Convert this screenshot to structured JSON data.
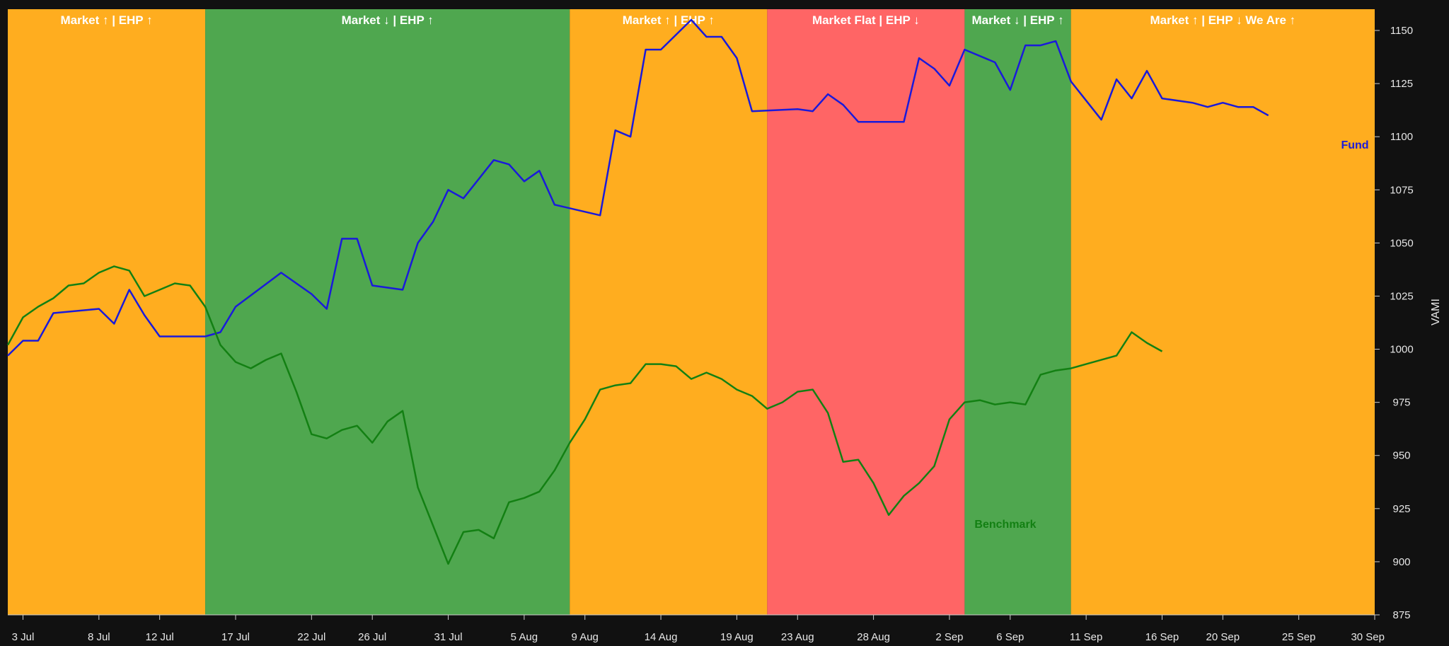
{
  "chart_data": {
    "type": "line",
    "title": "",
    "xlabel": "",
    "ylabel": "VAMI",
    "ylim": [
      875,
      1160
    ],
    "y_ticks": [
      875,
      900,
      925,
      950,
      975,
      1000,
      1025,
      1050,
      1075,
      1100,
      1125,
      1150
    ],
    "x_ticks": [
      {
        "label": "3 Jul",
        "date": "2023-07-03"
      },
      {
        "label": "8 Jul",
        "date": "2023-07-08"
      },
      {
        "label": "12 Jul",
        "date": "2023-07-12"
      },
      {
        "label": "17 Jul",
        "date": "2023-07-17"
      },
      {
        "label": "22 Jul",
        "date": "2023-07-22"
      },
      {
        "label": "26 Jul",
        "date": "2023-07-26"
      },
      {
        "label": "31 Jul",
        "date": "2023-07-31"
      },
      {
        "label": "5 Aug",
        "date": "2023-08-05"
      },
      {
        "label": "9 Aug",
        "date": "2023-08-09"
      },
      {
        "label": "14 Aug",
        "date": "2023-08-14"
      },
      {
        "label": "19 Aug",
        "date": "2023-08-19"
      },
      {
        "label": "23 Aug",
        "date": "2023-08-23"
      },
      {
        "label": "28 Aug",
        "date": "2023-08-28"
      },
      {
        "label": "2 Sep",
        "date": "2023-09-02"
      },
      {
        "label": "6 Sep",
        "date": "2023-09-06"
      },
      {
        "label": "11 Sep",
        "date": "2023-09-11"
      },
      {
        "label": "16 Sep",
        "date": "2023-09-16"
      },
      {
        "label": "20 Sep",
        "date": "2023-09-20"
      },
      {
        "label": "25 Sep",
        "date": "2023-09-25"
      },
      {
        "label": "30 Sep",
        "date": "2023-09-30"
      }
    ],
    "xlim": [
      "2023-07-02",
      "2023-09-30"
    ],
    "grid": false,
    "bands": [
      {
        "label": "Market ↑ | EHP ↑",
        "start": "2023-07-02",
        "end": "2023-07-15",
        "color": "#ffad1f"
      },
      {
        "label": "Market ↓ | EHP ↑",
        "start": "2023-07-15",
        "end": "2023-08-08",
        "color": "#4fa74f"
      },
      {
        "label": "Market ↑ | EHP ↑",
        "start": "2023-08-08",
        "end": "2023-08-21",
        "color": "#ffad1f"
      },
      {
        "label": "Market Flat | EHP ↓",
        "start": "2023-08-21",
        "end": "2023-09-03",
        "color": "#ff6565"
      },
      {
        "label": "Market ↓ | EHP ↑",
        "start": "2023-09-03",
        "end": "2023-09-10",
        "color": "#4fa74f"
      },
      {
        "label": "Market ↑ | EHP ↓ We Are ↑",
        "start": "2023-09-10",
        "end": "2023-09-30",
        "color": "#ffad1f"
      }
    ],
    "series": [
      {
        "name": "Fund",
        "color": "#1a1adb",
        "points": [
          [
            "2023-07-02",
            997
          ],
          [
            "2023-07-03",
            1004
          ],
          [
            "2023-07-04",
            1004
          ],
          [
            "2023-07-05",
            1017
          ],
          [
            "2023-07-08",
            1019
          ],
          [
            "2023-07-09",
            1012
          ],
          [
            "2023-07-10",
            1028
          ],
          [
            "2023-07-11",
            1016
          ],
          [
            "2023-07-12",
            1006
          ],
          [
            "2023-07-15",
            1006
          ],
          [
            "2023-07-16",
            1008
          ],
          [
            "2023-07-17",
            1020
          ],
          [
            "2023-07-20",
            1036
          ],
          [
            "2023-07-22",
            1026
          ],
          [
            "2023-07-23",
            1019
          ],
          [
            "2023-07-24",
            1052
          ],
          [
            "2023-07-25",
            1052
          ],
          [
            "2023-07-26",
            1030
          ],
          [
            "2023-07-28",
            1028
          ],
          [
            "2023-07-29",
            1050
          ],
          [
            "2023-07-30",
            1060
          ],
          [
            "2023-07-31",
            1075
          ],
          [
            "2023-08-01",
            1071
          ],
          [
            "2023-08-03",
            1089
          ],
          [
            "2023-08-04",
            1087
          ],
          [
            "2023-08-05",
            1079
          ],
          [
            "2023-08-06",
            1084
          ],
          [
            "2023-08-07",
            1068
          ],
          [
            "2023-08-10",
            1063
          ],
          [
            "2023-08-11",
            1103
          ],
          [
            "2023-08-12",
            1100
          ],
          [
            "2023-08-13",
            1141
          ],
          [
            "2023-08-14",
            1141
          ],
          [
            "2023-08-16",
            1155
          ],
          [
            "2023-08-17",
            1147
          ],
          [
            "2023-08-18",
            1147
          ],
          [
            "2023-08-19",
            1137
          ],
          [
            "2023-08-20",
            1112
          ],
          [
            "2023-08-23",
            1113
          ],
          [
            "2023-08-24",
            1112
          ],
          [
            "2023-08-25",
            1120
          ],
          [
            "2023-08-26",
            1115
          ],
          [
            "2023-08-27",
            1107
          ],
          [
            "2023-08-30",
            1107
          ],
          [
            "2023-08-31",
            1137
          ],
          [
            "2023-09-01",
            1132
          ],
          [
            "2023-09-02",
            1124
          ],
          [
            "2023-09-03",
            1141
          ],
          [
            "2023-09-05",
            1135
          ],
          [
            "2023-09-06",
            1122
          ],
          [
            "2023-09-07",
            1143
          ],
          [
            "2023-09-08",
            1143
          ],
          [
            "2023-09-09",
            1145
          ],
          [
            "2023-09-10",
            1126
          ],
          [
            "2023-09-12",
            1108
          ],
          [
            "2023-09-13",
            1127
          ],
          [
            "2023-09-14",
            1118
          ],
          [
            "2023-09-15",
            1131
          ],
          [
            "2023-09-16",
            1118
          ],
          [
            "2023-09-18",
            1116
          ],
          [
            "2023-09-19",
            1114
          ],
          [
            "2023-09-20",
            1116
          ],
          [
            "2023-09-21",
            1114
          ],
          [
            "2023-09-22",
            1114
          ],
          [
            "2023-09-23",
            1110
          ]
        ]
      },
      {
        "name": "Benchmark",
        "color": "#138013",
        "points": [
          [
            "2023-07-02",
            1002
          ],
          [
            "2023-07-03",
            1015
          ],
          [
            "2023-07-04",
            1020
          ],
          [
            "2023-07-05",
            1024
          ],
          [
            "2023-07-06",
            1030
          ],
          [
            "2023-07-07",
            1031
          ],
          [
            "2023-07-08",
            1036
          ],
          [
            "2023-07-09",
            1039
          ],
          [
            "2023-07-10",
            1037
          ],
          [
            "2023-07-11",
            1025
          ],
          [
            "2023-07-12",
            1028
          ],
          [
            "2023-07-13",
            1031
          ],
          [
            "2023-07-14",
            1030
          ],
          [
            "2023-07-15",
            1020
          ],
          [
            "2023-07-16",
            1002
          ],
          [
            "2023-07-17",
            994
          ],
          [
            "2023-07-18",
            991
          ],
          [
            "2023-07-19",
            995
          ],
          [
            "2023-07-20",
            998
          ],
          [
            "2023-07-21",
            980
          ],
          [
            "2023-07-22",
            960
          ],
          [
            "2023-07-23",
            958
          ],
          [
            "2023-07-24",
            962
          ],
          [
            "2023-07-25",
            964
          ],
          [
            "2023-07-26",
            956
          ],
          [
            "2023-07-27",
            966
          ],
          [
            "2023-07-28",
            971
          ],
          [
            "2023-07-29",
            935
          ],
          [
            "2023-07-30",
            917
          ],
          [
            "2023-07-31",
            899
          ],
          [
            "2023-08-01",
            914
          ],
          [
            "2023-08-02",
            915
          ],
          [
            "2023-08-03",
            911
          ],
          [
            "2023-08-04",
            928
          ],
          [
            "2023-08-05",
            930
          ],
          [
            "2023-08-06",
            933
          ],
          [
            "2023-08-07",
            943
          ],
          [
            "2023-08-08",
            956
          ],
          [
            "2023-08-09",
            967
          ],
          [
            "2023-08-10",
            981
          ],
          [
            "2023-08-11",
            983
          ],
          [
            "2023-08-12",
            984
          ],
          [
            "2023-08-13",
            993
          ],
          [
            "2023-08-14",
            993
          ],
          [
            "2023-08-15",
            992
          ],
          [
            "2023-08-16",
            986
          ],
          [
            "2023-08-17",
            989
          ],
          [
            "2023-08-18",
            986
          ],
          [
            "2023-08-19",
            981
          ],
          [
            "2023-08-20",
            978
          ],
          [
            "2023-08-21",
            972
          ],
          [
            "2023-08-22",
            975
          ],
          [
            "2023-08-23",
            980
          ],
          [
            "2023-08-24",
            981
          ],
          [
            "2023-08-25",
            970
          ],
          [
            "2023-08-26",
            947
          ],
          [
            "2023-08-27",
            948
          ],
          [
            "2023-08-28",
            937
          ],
          [
            "2023-08-29",
            922
          ],
          [
            "2023-08-30",
            931
          ],
          [
            "2023-08-31",
            937
          ],
          [
            "2023-09-01",
            945
          ],
          [
            "2023-09-02",
            967
          ],
          [
            "2023-09-03",
            975
          ],
          [
            "2023-09-04",
            976
          ],
          [
            "2023-09-05",
            974
          ],
          [
            "2023-09-06",
            975
          ],
          [
            "2023-09-07",
            974
          ],
          [
            "2023-09-08",
            988
          ],
          [
            "2023-09-09",
            990
          ],
          [
            "2023-09-10",
            991
          ],
          [
            "2023-09-11",
            993
          ],
          [
            "2023-09-12",
            995
          ],
          [
            "2023-09-13",
            997
          ],
          [
            "2023-09-14",
            1008
          ],
          [
            "2023-09-15",
            1003
          ],
          [
            "2023-09-16",
            999
          ]
        ]
      }
    ]
  }
}
